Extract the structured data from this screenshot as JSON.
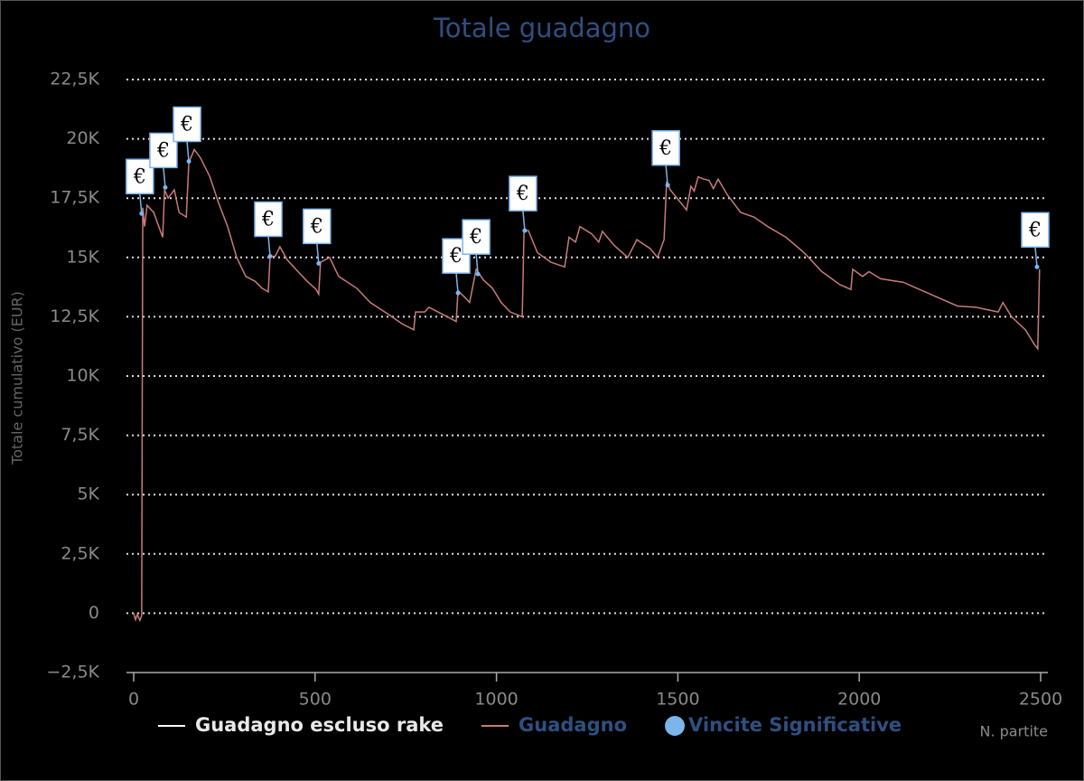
{
  "chart_data": {
    "type": "line",
    "title": "Totale guadagno",
    "x_label": "N. partite",
    "y_label": "Totale cumulativo (EUR)",
    "xlim": [
      0,
      2500
    ],
    "xticks": [
      0,
      500,
      1000,
      1500,
      2000,
      2500
    ],
    "ylim": [
      -2500,
      22500
    ],
    "yticks": [
      {
        "value": -2500,
        "label": "−2,5K"
      },
      0,
      {
        "value": 2500,
        "label": "2,5K"
      },
      {
        "value": 5000,
        "label": "5K"
      },
      {
        "value": 7500,
        "label": "7,5K"
      },
      {
        "value": 10000,
        "label": "10K"
      },
      {
        "value": 12500,
        "label": "12,5K"
      },
      {
        "value": 15000,
        "label": "15K"
      },
      {
        "value": 17500,
        "label": "17,5K"
      },
      {
        "value": 20000,
        "label": "20K"
      },
      {
        "value": 22500,
        "label": "22,5K"
      }
    ],
    "grid": true,
    "legend": "bottom",
    "marker_text": "€",
    "series": [
      {
        "name": "Guadagno escluso rake",
        "color": "#ffffff",
        "visible": false
      },
      {
        "name": "Guadagno",
        "color": "#c77c78",
        "x": [
          0,
          5,
          10,
          17,
          22,
          25,
          30,
          37,
          55,
          80,
          85,
          95,
          112,
          125,
          145,
          152,
          167,
          184,
          210,
          234,
          259,
          284,
          309,
          334,
          354,
          371,
          376,
          390,
          403,
          423,
          453,
          478,
          503,
          510,
          515,
          540,
          565,
          615,
          652,
          702,
          740,
          772,
          777,
          802,
          814,
          852,
          889,
          894,
          914,
          926,
          944,
          964,
          989,
          1013,
          1038,
          1071,
          1076,
          1088,
          1113,
          1150,
          1188,
          1200,
          1218,
          1230,
          1262,
          1282,
          1292,
          1325,
          1362,
          1387,
          1424,
          1444,
          1462,
          1469,
          1479,
          1524,
          1536,
          1545,
          1556,
          1572,
          1586,
          1598,
          1611,
          1636,
          1673,
          1710,
          1748,
          1798,
          1848,
          1897,
          1947,
          1977,
          1982,
          2009,
          2027,
          2059,
          2122,
          2196,
          2271,
          2321,
          2383,
          2396,
          2420,
          2458,
          2482,
          2492,
          2497
        ],
        "values": [
          0,
          -270,
          -50,
          -300,
          -100,
          17100,
          16300,
          17200,
          16900,
          15850,
          17850,
          17500,
          17850,
          16900,
          16700,
          19000,
          19550,
          19200,
          18400,
          17300,
          16300,
          15000,
          14200,
          14000,
          13700,
          13550,
          15050,
          15050,
          15450,
          14900,
          14400,
          14000,
          13650,
          13450,
          14800,
          15000,
          14200,
          13700,
          13100,
          12600,
          12200,
          11950,
          12700,
          12700,
          12900,
          12600,
          12300,
          13600,
          13300,
          13100,
          14500,
          14050,
          13700,
          13100,
          12700,
          12500,
          16130,
          16130,
          15200,
          14800,
          14600,
          15850,
          15650,
          16300,
          16000,
          15650,
          16100,
          15500,
          15000,
          15750,
          15370,
          15000,
          15750,
          18200,
          17850,
          17000,
          18000,
          17800,
          18400,
          18300,
          18250,
          17900,
          18300,
          17650,
          16900,
          16700,
          16300,
          15850,
          15200,
          14400,
          13850,
          13650,
          14500,
          14200,
          14400,
          14100,
          13950,
          13450,
          12950,
          12900,
          12700,
          13100,
          12500,
          11950,
          11350,
          11150,
          14500
        ]
      },
      {
        "name": "Vincite Significative",
        "color": "#7cb5ec",
        "type": "scatter",
        "x": [
          22,
          87,
          152,
          376,
          510,
          894,
          949,
          1078,
          1472,
          2490
        ],
        "values": [
          16850,
          17950,
          19050,
          15050,
          14750,
          13500,
          14300,
          16130,
          18050,
          14600
        ]
      }
    ]
  }
}
